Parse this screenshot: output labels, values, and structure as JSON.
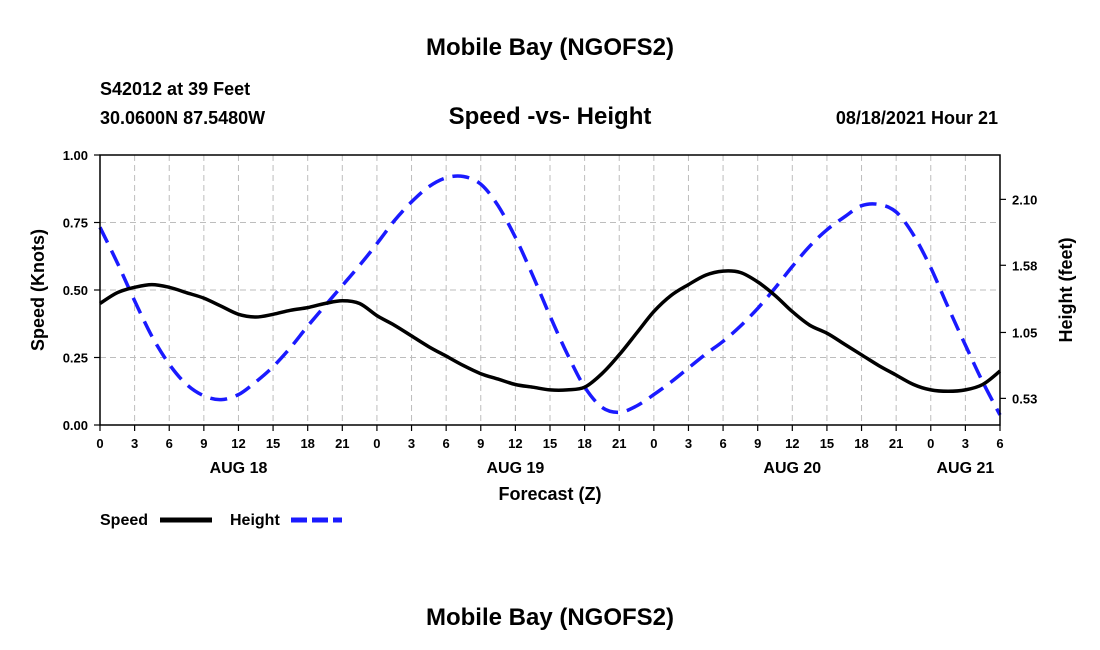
{
  "header": {
    "top_title": "Mobile Bay (NGOFS2)",
    "station": "S42012 at 39 Feet",
    "coords": "30.0600N  87.5480W",
    "chart_title": "Speed -vs- Height",
    "timestamp": "08/18/2021 Hour 21",
    "bottom_title": "Mobile Bay (NGOFS2)"
  },
  "chart_data": {
    "type": "line",
    "title": "Speed -vs- Height",
    "xlabel": "Forecast (Z)",
    "ylabel": "Speed (Knots)",
    "y2label": "Height (feet)",
    "x_unit": "hours since 08/18 00Z",
    "xlim": [
      0,
      78
    ],
    "ylim": [
      0,
      1.0
    ],
    "y2lim": [
      0.32,
      2.45
    ],
    "grid": true,
    "legend_position": "bottom-left",
    "x_ticks": [
      0,
      3,
      6,
      9,
      12,
      15,
      18,
      21,
      24,
      27,
      30,
      33,
      36,
      39,
      42,
      45,
      48,
      51,
      54,
      57,
      60,
      63,
      66,
      69,
      72,
      75,
      78
    ],
    "x_tick_labels": [
      "0",
      "3",
      "6",
      "9",
      "12",
      "15",
      "18",
      "21",
      "0",
      "3",
      "6",
      "9",
      "12",
      "15",
      "18",
      "21",
      "0",
      "3",
      "6",
      "9",
      "12",
      "15",
      "18",
      "21",
      "0",
      "3",
      "6"
    ],
    "date_labels": [
      {
        "x": 12,
        "label": "AUG 18"
      },
      {
        "x": 36,
        "label": "AUG 19"
      },
      {
        "x": 60,
        "label": "AUG 20"
      },
      {
        "x": 75,
        "label": "AUG 21"
      }
    ],
    "y_ticks": [
      0,
      0.25,
      0.5,
      0.75,
      1.0
    ],
    "y_tick_labels": [
      "0.00",
      "0.25",
      "0.50",
      "0.75",
      "1.00"
    ],
    "y2_ticks": [
      0.53,
      1.05,
      1.58,
      2.1
    ],
    "y2_tick_labels": [
      "0.53",
      "1.05",
      "1.58",
      "2.10"
    ],
    "series": [
      {
        "name": "Speed",
        "axis": "left",
        "color": "#000000",
        "dash": "solid",
        "x": [
          0,
          1.5,
          3,
          4.5,
          6,
          7.5,
          9,
          10.5,
          12,
          13.5,
          15,
          16.5,
          18,
          19.5,
          21,
          22.5,
          24,
          25.5,
          27,
          28.5,
          30,
          31.5,
          33,
          34.5,
          36,
          37.5,
          39,
          40.5,
          42,
          43.5,
          45,
          46.5,
          48,
          49.5,
          51,
          52.5,
          54,
          55.5,
          57,
          58.5,
          60,
          61.5,
          63,
          64.5,
          66,
          67.5,
          69,
          70.5,
          72,
          73.5,
          75,
          76.5,
          78
        ],
        "values": [
          0.45,
          0.49,
          0.51,
          0.52,
          0.51,
          0.49,
          0.47,
          0.44,
          0.41,
          0.4,
          0.41,
          0.425,
          0.435,
          0.45,
          0.46,
          0.45,
          0.405,
          0.37,
          0.33,
          0.29,
          0.255,
          0.22,
          0.19,
          0.17,
          0.15,
          0.14,
          0.13,
          0.13,
          0.14,
          0.19,
          0.26,
          0.34,
          0.42,
          0.48,
          0.52,
          0.555,
          0.57,
          0.565,
          0.53,
          0.48,
          0.42,
          0.37,
          0.34,
          0.3,
          0.26,
          0.22,
          0.185,
          0.15,
          0.13,
          0.125,
          0.13,
          0.15,
          0.2
        ]
      },
      {
        "name": "Height",
        "axis": "right",
        "color": "#1a1aff",
        "dash": "dashed",
        "x": [
          0,
          1.5,
          3,
          4.5,
          6,
          7.5,
          9,
          10.5,
          12,
          13.5,
          15,
          16.5,
          18,
          19.5,
          21,
          22.5,
          24,
          25.5,
          27,
          28.5,
          30,
          31.5,
          33,
          34.5,
          36,
          37.5,
          39,
          40.5,
          42,
          43.5,
          45,
          46.5,
          48,
          49.5,
          51,
          52.5,
          54,
          55.5,
          57,
          58.5,
          60,
          61.5,
          63,
          64.5,
          66,
          67.5,
          69,
          70.5,
          72,
          73.5,
          75,
          76.5,
          78
        ],
        "values": [
          1.88,
          1.6,
          1.3,
          1.02,
          0.8,
          0.64,
          0.55,
          0.52,
          0.56,
          0.66,
          0.78,
          0.93,
          1.1,
          1.26,
          1.42,
          1.58,
          1.75,
          1.93,
          2.08,
          2.2,
          2.27,
          2.28,
          2.22,
          2.05,
          1.8,
          1.5,
          1.18,
          0.88,
          0.62,
          0.46,
          0.42,
          0.47,
          0.56,
          0.66,
          0.77,
          0.88,
          0.98,
          1.1,
          1.24,
          1.4,
          1.57,
          1.73,
          1.86,
          1.96,
          2.05,
          2.06,
          2.0,
          1.82,
          1.56,
          1.25,
          0.95,
          0.66,
          0.4
        ]
      }
    ]
  }
}
